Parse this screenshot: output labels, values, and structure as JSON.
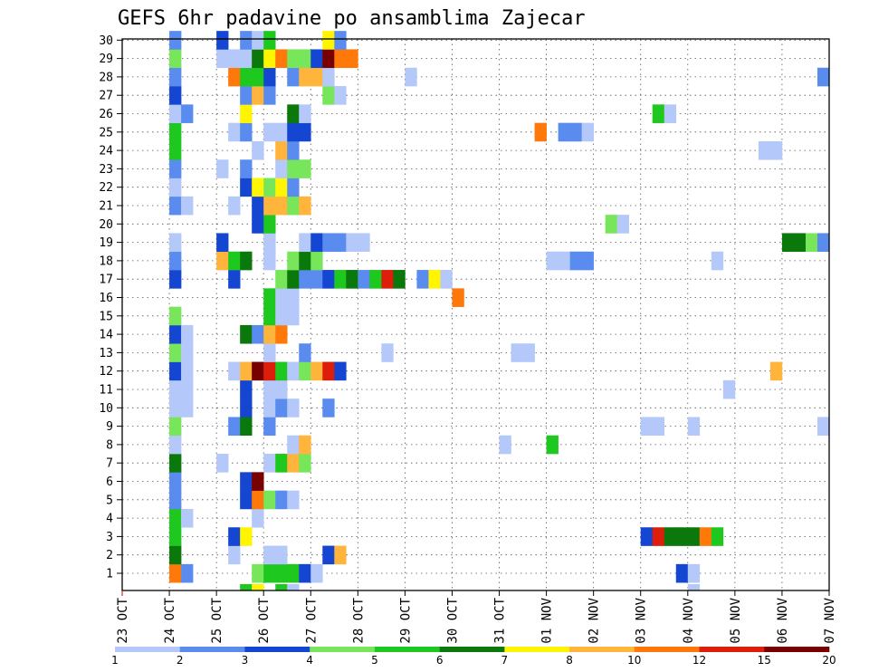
{
  "chart_data": {
    "type": "heatmap",
    "title": "GEFS 6hr padavine po ansamblima Zajecar",
    "xlabel": "",
    "ylabel": "",
    "x_ticks": [
      "23 OCT",
      "24 OCT",
      "25 OCT",
      "26 OCT",
      "27 OCT",
      "28 OCT",
      "29 OCT",
      "30 OCT",
      "31 OCT",
      "01 NOV",
      "02 NOV",
      "03 NOV",
      "04 NOV",
      "05 NOV",
      "06 NOV",
      "07 NOV"
    ],
    "y_range": [
      1,
      30
    ],
    "x_step_hours": 6,
    "time_start": "23 OCT 00Z",
    "time_end": "07 NOV 00Z",
    "grid": "dotted",
    "colorbar": {
      "labels": [
        1,
        2,
        3,
        4,
        5,
        6,
        7,
        8,
        10,
        12,
        15,
        20
      ],
      "colors": [
        "#b4c8fa",
        "#5a8cf0",
        "#1446d2",
        "#78e65a",
        "#1ec81e",
        "#0a780a",
        "#fff500",
        "#ffb43c",
        "#ff780a",
        "#dc1e0a",
        "#780000"
      ]
    },
    "members": [
      {
        "member": 1,
        "cells": [
          [
            4,
            8
          ],
          [
            5,
            1
          ],
          [
            11,
            3
          ],
          [
            12,
            4
          ],
          [
            13,
            4
          ],
          [
            14,
            4
          ],
          [
            15,
            2
          ],
          [
            16,
            0
          ],
          [
            47,
            2
          ],
          [
            48,
            0
          ]
        ]
      },
      {
        "member": 2,
        "cells": [
          [
            4,
            5
          ],
          [
            9,
            0
          ],
          [
            12,
            0
          ],
          [
            13,
            0
          ],
          [
            17,
            2
          ],
          [
            18,
            7
          ]
        ]
      },
      {
        "member": 3,
        "cells": [
          [
            4,
            4
          ],
          [
            9,
            2
          ],
          [
            10,
            6
          ],
          [
            44,
            2
          ],
          [
            45,
            9
          ],
          [
            46,
            5
          ],
          [
            47,
            5
          ],
          [
            48,
            5
          ],
          [
            49,
            8
          ],
          [
            50,
            4
          ]
        ]
      },
      {
        "member": 4,
        "cells": [
          [
            4,
            4
          ],
          [
            5,
            0
          ],
          [
            11,
            0
          ]
        ]
      },
      {
        "member": 5,
        "cells": [
          [
            4,
            1
          ],
          [
            10,
            2
          ],
          [
            11,
            8
          ],
          [
            12,
            3
          ],
          [
            13,
            1
          ],
          [
            14,
            0
          ]
        ]
      },
      {
        "member": 6,
        "cells": [
          [
            4,
            1
          ],
          [
            10,
            2
          ],
          [
            11,
            10
          ]
        ]
      },
      {
        "member": 7,
        "cells": [
          [
            4,
            5
          ],
          [
            8,
            0
          ],
          [
            12,
            0
          ],
          [
            13,
            4
          ],
          [
            14,
            7
          ],
          [
            15,
            3
          ]
        ]
      },
      {
        "member": 8,
        "cells": [
          [
            4,
            0
          ],
          [
            14,
            0
          ],
          [
            15,
            7
          ],
          [
            32,
            0
          ],
          [
            36,
            4
          ]
        ]
      },
      {
        "member": 9,
        "cells": [
          [
            4,
            3
          ],
          [
            9,
            1
          ],
          [
            10,
            5
          ],
          [
            12,
            1
          ],
          [
            44,
            0
          ],
          [
            45,
            0
          ],
          [
            48,
            0
          ],
          [
            59,
            0
          ]
        ]
      },
      {
        "member": 10,
        "cells": [
          [
            4,
            0
          ],
          [
            5,
            0
          ],
          [
            10,
            2
          ],
          [
            12,
            0
          ],
          [
            13,
            1
          ],
          [
            14,
            0
          ],
          [
            17,
            1
          ]
        ]
      },
      {
        "member": 11,
        "cells": [
          [
            4,
            0
          ],
          [
            5,
            0
          ],
          [
            10,
            2
          ],
          [
            12,
            0
          ],
          [
            13,
            0
          ],
          [
            51,
            0
          ]
        ]
      },
      {
        "member": 12,
        "cells": [
          [
            4,
            2
          ],
          [
            5,
            0
          ],
          [
            9,
            0
          ],
          [
            10,
            7
          ],
          [
            11,
            10
          ],
          [
            12,
            9
          ],
          [
            13,
            4
          ],
          [
            14,
            0
          ],
          [
            15,
            3
          ],
          [
            16,
            7
          ],
          [
            17,
            9
          ],
          [
            18,
            2
          ],
          [
            55,
            7
          ]
        ]
      },
      {
        "member": 13,
        "cells": [
          [
            4,
            3
          ],
          [
            5,
            0
          ],
          [
            12,
            0
          ],
          [
            15,
            1
          ],
          [
            22,
            0
          ],
          [
            33,
            0
          ],
          [
            34,
            0
          ]
        ]
      },
      {
        "member": 14,
        "cells": [
          [
            4,
            2
          ],
          [
            5,
            0
          ],
          [
            10,
            5
          ],
          [
            11,
            1
          ],
          [
            12,
            7
          ],
          [
            13,
            8
          ]
        ]
      },
      {
        "member": 15,
        "cells": [
          [
            4,
            3
          ],
          [
            12,
            4
          ],
          [
            13,
            0
          ],
          [
            14,
            0
          ]
        ]
      },
      {
        "member": 16,
        "cells": [
          [
            12,
            4
          ],
          [
            13,
            0
          ],
          [
            14,
            0
          ],
          [
            28,
            8
          ]
        ]
      },
      {
        "member": 17,
        "cells": [
          [
            4,
            2
          ],
          [
            9,
            2
          ],
          [
            13,
            3
          ],
          [
            14,
            5
          ],
          [
            15,
            1
          ],
          [
            16,
            1
          ],
          [
            17,
            2
          ],
          [
            18,
            4
          ],
          [
            19,
            5
          ],
          [
            20,
            1
          ],
          [
            21,
            4
          ],
          [
            22,
            9
          ],
          [
            23,
            5
          ],
          [
            25,
            1
          ],
          [
            26,
            6
          ],
          [
            27,
            0
          ]
        ]
      },
      {
        "member": 18,
        "cells": [
          [
            4,
            1
          ],
          [
            8,
            7
          ],
          [
            9,
            4
          ],
          [
            10,
            5
          ],
          [
            12,
            0
          ],
          [
            14,
            3
          ],
          [
            15,
            5
          ],
          [
            16,
            3
          ],
          [
            36,
            0
          ],
          [
            37,
            0
          ],
          [
            38,
            1
          ],
          [
            39,
            1
          ],
          [
            50,
            0
          ]
        ]
      },
      {
        "member": 19,
        "cells": [
          [
            4,
            0
          ],
          [
            8,
            2
          ],
          [
            12,
            0
          ],
          [
            15,
            0
          ],
          [
            16,
            2
          ],
          [
            17,
            1
          ],
          [
            18,
            1
          ],
          [
            19,
            0
          ],
          [
            20,
            0
          ],
          [
            56,
            5
          ],
          [
            57,
            5
          ],
          [
            58,
            3
          ],
          [
            59,
            1
          ]
        ]
      },
      {
        "member": 20,
        "cells": [
          [
            11,
            2
          ],
          [
            12,
            4
          ],
          [
            41,
            3
          ],
          [
            42,
            0
          ]
        ]
      },
      {
        "member": 21,
        "cells": [
          [
            4,
            1
          ],
          [
            5,
            0
          ],
          [
            9,
            0
          ],
          [
            11,
            2
          ],
          [
            12,
            7
          ],
          [
            13,
            7
          ],
          [
            14,
            3
          ],
          [
            15,
            7
          ]
        ]
      },
      {
        "member": 22,
        "cells": [
          [
            4,
            0
          ],
          [
            10,
            2
          ],
          [
            11,
            6
          ],
          [
            12,
            3
          ],
          [
            13,
            6
          ],
          [
            14,
            1
          ]
        ]
      },
      {
        "member": 23,
        "cells": [
          [
            4,
            1
          ],
          [
            8,
            0
          ],
          [
            10,
            1
          ],
          [
            13,
            0
          ],
          [
            14,
            3
          ],
          [
            15,
            3
          ]
        ]
      },
      {
        "member": 24,
        "cells": [
          [
            4,
            4
          ],
          [
            11,
            0
          ],
          [
            13,
            7
          ],
          [
            14,
            1
          ],
          [
            54,
            0
          ],
          [
            55,
            0
          ]
        ]
      },
      {
        "member": 25,
        "cells": [
          [
            4,
            4
          ],
          [
            9,
            0
          ],
          [
            10,
            1
          ],
          [
            12,
            0
          ],
          [
            13,
            0
          ],
          [
            14,
            2
          ],
          [
            15,
            2
          ],
          [
            35,
            8
          ],
          [
            37,
            1
          ],
          [
            38,
            1
          ],
          [
            39,
            0
          ]
        ]
      },
      {
        "member": 26,
        "cells": [
          [
            4,
            0
          ],
          [
            5,
            1
          ],
          [
            10,
            6
          ],
          [
            14,
            5
          ],
          [
            15,
            0
          ],
          [
            45,
            4
          ],
          [
            46,
            0
          ]
        ]
      },
      {
        "member": 27,
        "cells": [
          [
            4,
            2
          ],
          [
            10,
            1
          ],
          [
            11,
            7
          ],
          [
            12,
            1
          ],
          [
            17,
            3
          ],
          [
            18,
            0
          ]
        ]
      },
      {
        "member": 28,
        "cells": [
          [
            4,
            1
          ],
          [
            9,
            8
          ],
          [
            10,
            4
          ],
          [
            11,
            4
          ],
          [
            12,
            2
          ],
          [
            14,
            1
          ],
          [
            15,
            7
          ],
          [
            16,
            7
          ],
          [
            17,
            0
          ],
          [
            24,
            0
          ],
          [
            59,
            1
          ]
        ]
      },
      {
        "member": 29,
        "cells": [
          [
            4,
            3
          ],
          [
            8,
            0
          ],
          [
            9,
            0
          ],
          [
            10,
            0
          ],
          [
            11,
            5
          ],
          [
            12,
            6
          ],
          [
            13,
            8
          ],
          [
            14,
            3
          ],
          [
            15,
            3
          ],
          [
            16,
            2
          ],
          [
            17,
            10
          ],
          [
            18,
            8
          ],
          [
            19,
            8
          ]
        ]
      },
      {
        "member": 30,
        "cells": [
          [
            4,
            1
          ],
          [
            8,
            2
          ],
          [
            10,
            1
          ],
          [
            11,
            0
          ],
          [
            12,
            4
          ],
          [
            17,
            6
          ],
          [
            18,
            1
          ]
        ]
      }
    ],
    "partial_row_below_1": [
      [
        10,
        4
      ],
      [
        11,
        6
      ],
      [
        13,
        4
      ],
      [
        14,
        0
      ],
      [
        48,
        0
      ]
    ]
  }
}
